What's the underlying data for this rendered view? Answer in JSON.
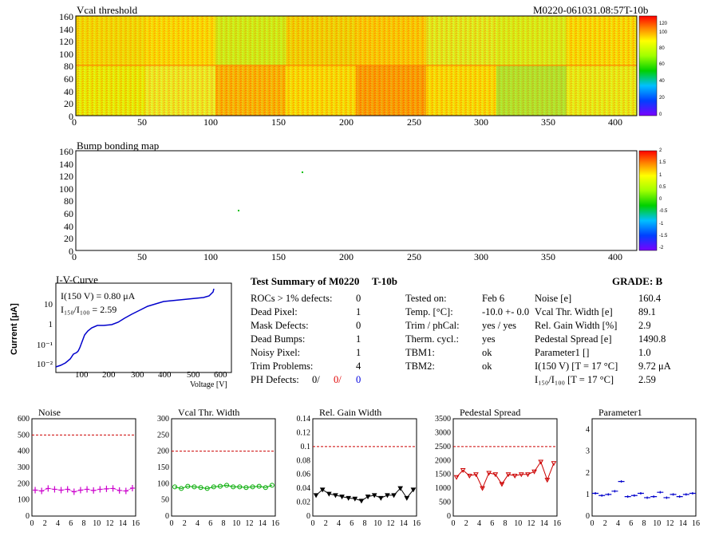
{
  "vcal": {
    "title": "Vcal threshold",
    "module_id": "M0220-061031.08:57T-10b",
    "y_ticks": [
      "0",
      "20",
      "40",
      "60",
      "80",
      "100",
      "120",
      "140",
      "160"
    ],
    "x_ticks": [
      "0",
      "50",
      "100",
      "150",
      "200",
      "250",
      "300",
      "350",
      "400"
    ],
    "palette_ticks": [
      "0",
      "20",
      "40",
      "60",
      "80",
      "100",
      "120"
    ]
  },
  "bump": {
    "title": "Bump bonding map",
    "y_ticks": [
      "0",
      "20",
      "40",
      "60",
      "80",
      "100",
      "120",
      "140",
      "160"
    ],
    "x_ticks": [
      "0",
      "50",
      "100",
      "150",
      "200",
      "250",
      "300",
      "350",
      "400"
    ],
    "palette_ticks": [
      "-2",
      "-1.5",
      "-1",
      "-0.5",
      "0",
      "0.5",
      "1",
      "1.5",
      "2"
    ]
  },
  "iv": {
    "title": "I-V-Curve",
    "ylabel": "Current [μA]",
    "xlabel": "Voltage [V]",
    "current_at_150": "I(150 V) = 0.80 μA",
    "ratio_label": "I₁₅₀/I₁₀₀ = 2.59",
    "y_ticks": [
      "10⁻²",
      "10⁻¹",
      "1",
      "10"
    ],
    "x_ticks": [
      "100",
      "200",
      "300",
      "400",
      "500",
      "600"
    ]
  },
  "summary": {
    "title": "Test Summary of M0220",
    "sub": "T-10b",
    "grade": "GRADE:  B",
    "left_rows": [
      {
        "label": "ROCs > 1% defects:",
        "value": "0"
      },
      {
        "label": "Dead Pixel:",
        "value": "1"
      },
      {
        "label": "Mask Defects:",
        "value": "0"
      },
      {
        "label": "Dead Bumps:",
        "value": "1"
      },
      {
        "label": "Noisy Pixel:",
        "value": "1"
      },
      {
        "label": "Trim Problems:",
        "value": "4"
      }
    ],
    "ph_label": "PH Defects:",
    "ph_values": [
      "0/",
      "0/",
      "0"
    ],
    "mid_rows": [
      {
        "label": "Tested on:",
        "value": "Feb 6"
      },
      {
        "label": "Temp. [°C]:",
        "value": "-10.0 +- 0.0"
      },
      {
        "label": "Trim / phCal:",
        "value": "yes / yes"
      },
      {
        "label": "Therm. cycl.:",
        "value": "yes"
      },
      {
        "label": "TBM1:",
        "value": "ok"
      },
      {
        "label": "TBM2:",
        "value": "ok"
      }
    ],
    "right_rows": [
      {
        "label": "Noise [e]",
        "value": "160.4"
      },
      {
        "label": "Vcal Thr. Width [e]",
        "value": "89.1"
      },
      {
        "label": "Rel. Gain Width [%]",
        "value": "2.9"
      },
      {
        "label": "Pedestal Spread [e]",
        "value": "1490.8"
      },
      {
        "label": "Parameter1 []",
        "value": "1.0"
      },
      {
        "label": "I(150 V) [T = 17 °C]",
        "value": "9.72 μA"
      },
      {
        "label": "I₁₅₀/I₁₀₀  [T = 17 °C]",
        "value": "2.59"
      }
    ]
  },
  "chart_data": [
    {
      "type": "scatter",
      "title": "Noise",
      "ylim": [
        0,
        600
      ],
      "y_ticks": [
        "0",
        "100",
        "200",
        "300",
        "400",
        "500",
        "600"
      ],
      "x_ticks": [
        "0",
        "2",
        "4",
        "6",
        "8",
        "10",
        "12",
        "14",
        "16"
      ],
      "color": "#cc00cc",
      "limit": 500,
      "marker": "cross",
      "x": [
        0,
        1,
        2,
        3,
        4,
        5,
        6,
        7,
        8,
        9,
        10,
        11,
        12,
        13,
        14,
        15
      ],
      "y": [
        160,
        155,
        170,
        165,
        160,
        165,
        150,
        160,
        165,
        158,
        165,
        168,
        170,
        158,
        155,
        172
      ]
    },
    {
      "type": "line",
      "title": "Vcal Thr. Width",
      "ylim": [
        0,
        300
      ],
      "y_ticks": [
        "0",
        "50",
        "100",
        "150",
        "200",
        "250",
        "300"
      ],
      "x_ticks": [
        "0",
        "2",
        "4",
        "6",
        "8",
        "10",
        "12",
        "14",
        "16"
      ],
      "color": "#00aa00",
      "limit": 200,
      "marker": "circle",
      "x": [
        0,
        1,
        2,
        3,
        4,
        5,
        6,
        7,
        8,
        9,
        10,
        11,
        12,
        13,
        14,
        15
      ],
      "y": [
        90,
        85,
        92,
        90,
        88,
        85,
        90,
        92,
        95,
        90,
        90,
        88,
        90,
        92,
        88,
        95
      ]
    },
    {
      "type": "line",
      "title": "Rel. Gain Width",
      "ylim": [
        0,
        0.14
      ],
      "y_ticks": [
        "0",
        "0.02",
        "0.04",
        "0.06",
        "0.08",
        "0.1",
        "0.12",
        "0.14"
      ],
      "x_ticks": [
        "0",
        "2",
        "4",
        "6",
        "8",
        "10",
        "12",
        "14",
        "16"
      ],
      "color": "#000000",
      "limit": 0.1,
      "marker": "triangle",
      "x": [
        0,
        1,
        2,
        3,
        4,
        5,
        6,
        7,
        8,
        9,
        10,
        11,
        12,
        13,
        14,
        15
      ],
      "y": [
        0.03,
        0.038,
        0.032,
        0.03,
        0.028,
        0.026,
        0.025,
        0.022,
        0.028,
        0.03,
        0.026,
        0.03,
        0.03,
        0.04,
        0.026,
        0.038
      ]
    },
    {
      "type": "line",
      "title": "Pedestal Spread",
      "ylim": [
        0,
        3500
      ],
      "y_ticks": [
        "0",
        "500",
        "1000",
        "1500",
        "2000",
        "2500",
        "3000",
        "3500"
      ],
      "x_ticks": [
        "0",
        "2",
        "4",
        "6",
        "8",
        "10",
        "12",
        "14",
        "16"
      ],
      "color": "#cc0000",
      "limit": 2500,
      "marker": "triangle",
      "x": [
        0,
        1,
        2,
        3,
        4,
        5,
        6,
        7,
        8,
        9,
        10,
        11,
        12,
        13,
        14,
        15
      ],
      "y": [
        1400,
        1650,
        1450,
        1500,
        1000,
        1550,
        1500,
        1150,
        1500,
        1450,
        1500,
        1500,
        1600,
        1950,
        1300,
        1900
      ]
    },
    {
      "type": "scatter",
      "title": "Parameter1",
      "ylim": [
        0,
        4.5
      ],
      "y_ticks": [
        "0",
        "1",
        "2",
        "3",
        "4"
      ],
      "x_ticks": [
        "0",
        "2",
        "4",
        "6",
        "8",
        "10",
        "12",
        "14",
        "16"
      ],
      "color": "#0000cc",
      "limit": null,
      "marker": "dash",
      "x": [
        0,
        1,
        2,
        3,
        4,
        5,
        6,
        7,
        8,
        9,
        10,
        11,
        12,
        13,
        14,
        15
      ],
      "y": [
        1.05,
        0.95,
        1.0,
        1.15,
        1.6,
        0.9,
        0.95,
        1.05,
        0.85,
        0.9,
        1.1,
        0.85,
        1.0,
        0.9,
        1.0,
        1.05
      ]
    }
  ]
}
